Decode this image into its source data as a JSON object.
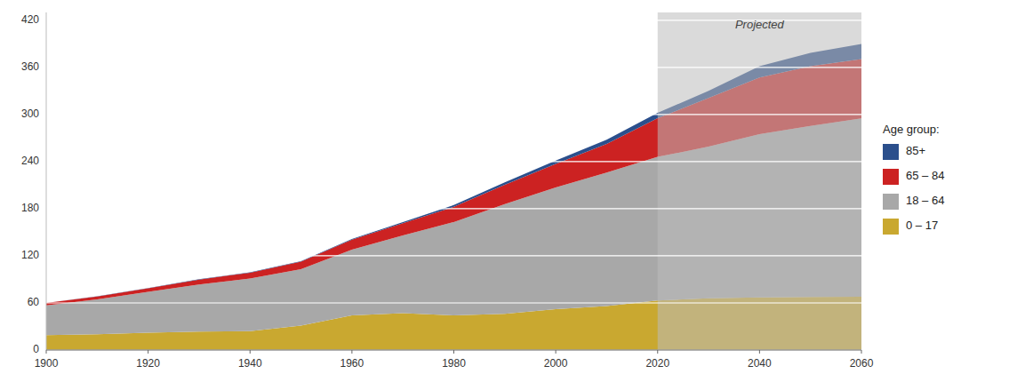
{
  "chart_data": {
    "type": "area",
    "stacked": true,
    "x": [
      1900,
      1910,
      1920,
      1930,
      1940,
      1950,
      1960,
      1970,
      1980,
      1990,
      2000,
      2010,
      2020,
      2030,
      2040,
      2050,
      2060
    ],
    "series": [
      {
        "name": "0 – 17",
        "color": "#C9A830",
        "values": [
          19.0,
          20.0,
          22.0,
          23.5,
          24.0,
          31.0,
          44.0,
          47.0,
          44.0,
          46.0,
          52.0,
          56.0,
          63.0,
          66.0,
          67.0,
          67.5,
          68.0
        ]
      },
      {
        "name": "18 – 64",
        "color": "#A8A8A8",
        "values": [
          38.0,
          44.5,
          52.0,
          60.0,
          67.0,
          72.0,
          84.0,
          99.0,
          119.0,
          140.0,
          155.0,
          170.0,
          183.0,
          193.0,
          208.0,
          218.0,
          227.0
        ]
      },
      {
        "name": "65 – 84",
        "color": "#CC2222",
        "values": [
          3.0,
          3.8,
          4.7,
          6.3,
          7.5,
          9.5,
          12.5,
          15.5,
          19.5,
          24.5,
          30.0,
          36.5,
          49.3,
          62.0,
          72.0,
          76.0,
          75.7
        ]
      },
      {
        "name": "85+",
        "color": "#2B4F8C",
        "values": [
          0.1,
          0.2,
          0.3,
          0.4,
          0.5,
          0.6,
          0.9,
          1.4,
          2.2,
          3.0,
          4.2,
          5.5,
          6.7,
          9.1,
          14.4,
          17.0,
          19.0
        ]
      }
    ],
    "xlim": [
      1900,
      2060
    ],
    "ylim": [
      0,
      430
    ],
    "xticks": [
      1900,
      1920,
      1940,
      1960,
      1980,
      2000,
      2020,
      2040,
      2060
    ],
    "yticks": [
      0,
      60,
      120,
      180,
      240,
      300,
      360,
      420
    ],
    "grid": true,
    "legend": "right",
    "legend_title": "Age group:",
    "annotations": [
      {
        "text": "Projected",
        "x": [
          2020,
          2060
        ],
        "color": "#BBBBBB"
      }
    ]
  }
}
